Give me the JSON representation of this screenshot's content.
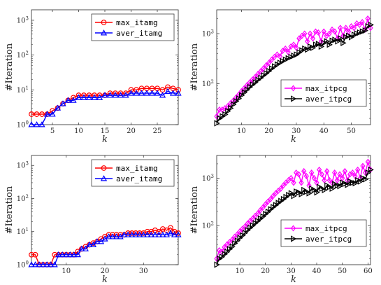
{
  "chart_data": [
    {
      "type": "line",
      "xlabel": "k",
      "ylabel": "#Iteration",
      "xlim": [
        1,
        29
      ],
      "ylim": [
        1,
        2000
      ],
      "yscale": "log",
      "xticks": [
        5,
        10,
        15,
        20,
        25
      ],
      "yticks": [
        1,
        10,
        100,
        1000
      ],
      "ytick_labels": [
        "10^0",
        "10^1",
        "10^2",
        "10^3"
      ],
      "legend_position": "top-right",
      "series": [
        {
          "name": "max_itamg",
          "color": "#ff0000",
          "marker": "circle",
          "x": [
            1,
            2,
            3,
            4,
            5,
            6,
            7,
            8,
            9,
            10,
            11,
            12,
            13,
            14,
            15,
            16,
            17,
            18,
            19,
            20,
            21,
            22,
            23,
            24,
            25,
            26,
            27,
            28,
            29
          ],
          "values": [
            2,
            2,
            2,
            2,
            2.5,
            3,
            4,
            5,
            6,
            7,
            7,
            7,
            7,
            7,
            7,
            8,
            8,
            8,
            8,
            10,
            10,
            11,
            11,
            11,
            11,
            10,
            12,
            11,
            10
          ]
        },
        {
          "name": "aver_itamg",
          "color": "#0000ff",
          "marker": "triangle",
          "x": [
            1,
            2,
            3,
            4,
            5,
            6,
            7,
            8,
            9,
            10,
            11,
            12,
            13,
            14,
            15,
            16,
            17,
            18,
            19,
            20,
            21,
            22,
            23,
            24,
            25,
            26,
            27,
            28,
            29
          ],
          "values": [
            1,
            1,
            1,
            2,
            2,
            3,
            4,
            5,
            5,
            6,
            6,
            6,
            6,
            6,
            7,
            7,
            7,
            7,
            7,
            8,
            8,
            8,
            8,
            8,
            8,
            7,
            9,
            8,
            8
          ]
        }
      ]
    },
    {
      "type": "line",
      "xlabel": "k",
      "ylabel": "#Iteration",
      "xlim": [
        1,
        57
      ],
      "ylim": [
        15,
        3000
      ],
      "yscale": "log",
      "xticks": [
        10,
        20,
        30,
        40,
        50
      ],
      "yticks": [
        100,
        1000
      ],
      "ytick_labels": [
        "10^2",
        "10^3"
      ],
      "legend_position": "bottom-right",
      "series": [
        {
          "name": "max_itpcg",
          "color": "#ff00ff",
          "marker": "diamond",
          "x": [
            1,
            2,
            3,
            4,
            5,
            6,
            7,
            8,
            9,
            10,
            11,
            12,
            13,
            14,
            15,
            16,
            17,
            18,
            19,
            20,
            21,
            22,
            23,
            24,
            25,
            26,
            27,
            28,
            29,
            30,
            31,
            32,
            33,
            34,
            35,
            36,
            37,
            38,
            39,
            40,
            41,
            42,
            43,
            44,
            45,
            46,
            47,
            48,
            49,
            50,
            51,
            52,
            53,
            54,
            55,
            56,
            57
          ],
          "values": [
            22,
            30,
            30,
            32,
            35,
            40,
            45,
            52,
            60,
            70,
            80,
            92,
            105,
            120,
            135,
            155,
            175,
            200,
            230,
            260,
            300,
            340,
            380,
            350,
            450,
            500,
            430,
            550,
            600,
            520,
            800,
            900,
            1000,
            700,
            1000,
            800,
            1100,
            1050,
            700,
            1100,
            900,
            1000,
            1200,
            1100,
            800,
            1300,
            900,
            1300,
            1100,
            1400,
            1300,
            1600,
            1500,
            1700,
            1200,
            2000,
            1300
          ]
        },
        {
          "name": "aver_itpcg",
          "color": "#000000",
          "marker": "triangle-right",
          "x": [
            1,
            2,
            3,
            4,
            5,
            6,
            7,
            8,
            9,
            10,
            11,
            12,
            13,
            14,
            15,
            16,
            17,
            18,
            19,
            20,
            21,
            22,
            23,
            24,
            25,
            26,
            27,
            28,
            29,
            30,
            31,
            32,
            33,
            34,
            35,
            36,
            37,
            38,
            39,
            40,
            41,
            42,
            43,
            44,
            45,
            46,
            47,
            48,
            49,
            50,
            51,
            52,
            53,
            54,
            55,
            56,
            57
          ],
          "values": [
            16,
            20,
            22,
            24,
            28,
            32,
            38,
            44,
            50,
            58,
            66,
            75,
            85,
            95,
            105,
            118,
            130,
            145,
            160,
            178,
            200,
            220,
            240,
            260,
            280,
            300,
            320,
            340,
            360,
            380,
            420,
            460,
            500,
            480,
            550,
            520,
            600,
            620,
            550,
            650,
            700,
            600,
            720,
            750,
            700,
            800,
            650,
            850,
            900,
            850,
            950,
            1000,
            1050,
            1100,
            1150,
            1400,
            1500
          ]
        }
      ]
    },
    {
      "type": "line",
      "xlabel": "k",
      "ylabel": "#Iteration",
      "xlim": [
        1,
        39
      ],
      "ylim": [
        1,
        2000
      ],
      "yscale": "log",
      "xticks": [
        10,
        20,
        30
      ],
      "yticks": [
        1,
        10,
        100,
        1000
      ],
      "ytick_labels": [
        "10^0",
        "10^1",
        "10^2",
        "10^3"
      ],
      "legend_position": "top-right",
      "series": [
        {
          "name": "max_itamg",
          "color": "#ff0000",
          "marker": "circle",
          "x": [
            1,
            2,
            3,
            4,
            5,
            6,
            7,
            8,
            9,
            10,
            11,
            12,
            13,
            14,
            15,
            16,
            17,
            18,
            19,
            20,
            21,
            22,
            23,
            24,
            25,
            26,
            27,
            28,
            29,
            30,
            31,
            32,
            33,
            34,
            35,
            36,
            37,
            38,
            39
          ],
          "values": [
            2,
            2,
            1,
            1,
            1,
            1,
            2,
            2,
            2,
            2,
            2,
            2,
            2.5,
            3,
            3.5,
            4,
            4.5,
            5,
            6,
            7,
            8,
            8,
            8,
            8,
            8,
            9,
            9,
            9,
            9,
            9,
            10,
            10,
            11,
            10,
            12,
            11,
            13,
            10,
            9
          ]
        },
        {
          "name": "aver_itamg",
          "color": "#0000ff",
          "marker": "triangle",
          "x": [
            1,
            2,
            3,
            4,
            5,
            6,
            7,
            8,
            9,
            10,
            11,
            12,
            13,
            14,
            15,
            16,
            17,
            18,
            19,
            20,
            21,
            22,
            23,
            24,
            25,
            26,
            27,
            28,
            29,
            30,
            31,
            32,
            33,
            34,
            35,
            36,
            37,
            38,
            39
          ],
          "values": [
            1,
            1,
            1,
            1,
            1,
            1,
            1,
            2,
            2,
            2,
            2,
            2,
            2,
            3,
            3,
            4,
            4,
            5,
            5,
            6,
            7,
            7,
            7,
            7,
            8,
            8,
            8,
            8,
            8,
            8,
            8,
            8,
            8,
            8,
            8,
            8,
            9,
            8,
            8
          ]
        }
      ]
    },
    {
      "type": "line",
      "xlabel": "k",
      "ylabel": "#Iteration",
      "xlim": [
        1,
        61
      ],
      "ylim": [
        15,
        3000
      ],
      "yscale": "log",
      "xticks": [
        10,
        20,
        30,
        40,
        50,
        60
      ],
      "yticks": [
        100,
        1000
      ],
      "ytick_labels": [
        "10^2",
        "10^3"
      ],
      "legend_position": "bottom-right",
      "series": [
        {
          "name": "max_itpcg",
          "color": "#ff00ff",
          "marker": "diamond",
          "x": [
            1,
            2,
            3,
            4,
            5,
            6,
            7,
            8,
            9,
            10,
            11,
            12,
            13,
            14,
            15,
            16,
            17,
            18,
            19,
            20,
            21,
            22,
            23,
            24,
            25,
            26,
            27,
            28,
            29,
            30,
            31,
            32,
            33,
            34,
            35,
            36,
            37,
            38,
            39,
            40,
            41,
            42,
            43,
            44,
            45,
            46,
            47,
            48,
            49,
            50,
            51,
            52,
            53,
            54,
            55,
            56,
            57,
            58,
            59,
            60,
            61
          ],
          "values": [
            20,
            30,
            28,
            35,
            40,
            45,
            50,
            58,
            65,
            75,
            85,
            95,
            110,
            125,
            140,
            160,
            180,
            210,
            240,
            280,
            320,
            360,
            420,
            480,
            540,
            600,
            700,
            800,
            900,
            1000,
            800,
            1300,
            1200,
            800,
            1400,
            1100,
            700,
            1300,
            1000,
            800,
            1500,
            1200,
            900,
            1400,
            900,
            800,
            1300,
            900,
            1200,
            1000,
            1400,
            900,
            1200,
            1300,
            1100,
            1500,
            1000,
            1800,
            1300,
            2200,
            1500
          ]
        },
        {
          "name": "aver_itpcg",
          "color": "#000000",
          "marker": "triangle-right",
          "x": [
            1,
            2,
            3,
            4,
            5,
            6,
            7,
            8,
            9,
            10,
            11,
            12,
            13,
            14,
            15,
            16,
            17,
            18,
            19,
            20,
            21,
            22,
            23,
            24,
            25,
            26,
            27,
            28,
            29,
            30,
            31,
            32,
            33,
            34,
            35,
            36,
            37,
            38,
            39,
            40,
            41,
            42,
            43,
            44,
            45,
            46,
            47,
            48,
            49,
            50,
            51,
            52,
            53,
            54,
            55,
            56,
            57,
            58,
            59,
            60,
            61
          ],
          "values": [
            15,
            20,
            22,
            25,
            28,
            32,
            36,
            42,
            48,
            55,
            62,
            70,
            80,
            90,
            100,
            112,
            125,
            140,
            155,
            175,
            195,
            220,
            245,
            270,
            300,
            330,
            360,
            400,
            440,
            480,
            420,
            520,
            500,
            460,
            560,
            520,
            480,
            600,
            560,
            500,
            650,
            600,
            560,
            700,
            650,
            600,
            750,
            700,
            680,
            800,
            760,
            720,
            850,
            800,
            780,
            900,
            850,
            1000,
            950,
            1300,
            1500
          ]
        }
      ]
    }
  ]
}
